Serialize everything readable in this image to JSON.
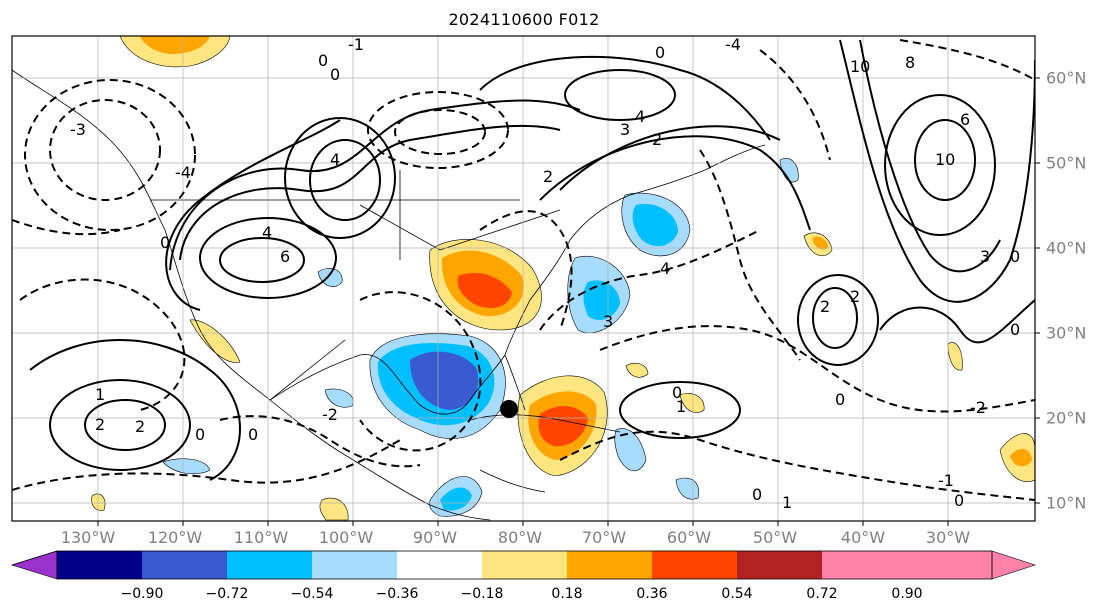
{
  "title": "2024110600 F012",
  "longitude_labels": [
    "130°W",
    "120°W",
    "110°W",
    "100°W",
    "90°W",
    "80°W",
    "70°W",
    "60°W",
    "50°W",
    "40°W",
    "30°W"
  ],
  "latitude_labels": [
    "60°N",
    "50°N",
    "40°N",
    "30°N",
    "20°N",
    "10°N"
  ],
  "colorbar": {
    "ticks": [
      "−0.90",
      "−0.72",
      "−0.54",
      "−0.36",
      "−0.18",
      "0.18",
      "0.36",
      "0.54",
      "0.72",
      "0.90"
    ],
    "colors": [
      "#9932cc",
      "#00008b",
      "#3a5bd0",
      "#00bfff",
      "#a8dcff",
      "#ffffff",
      "#ffe680",
      "#ffa500",
      "#ff4500",
      "#b22222",
      "#ff82ab"
    ]
  },
  "contour_labels": [
    "-1",
    "0",
    "1",
    "2",
    "3",
    "4",
    "6",
    "8",
    "10",
    "-2",
    "-3",
    "-4"
  ],
  "colors": {
    "frame": "#000000",
    "grid": "#b0b0b0",
    "label": "#808080"
  }
}
